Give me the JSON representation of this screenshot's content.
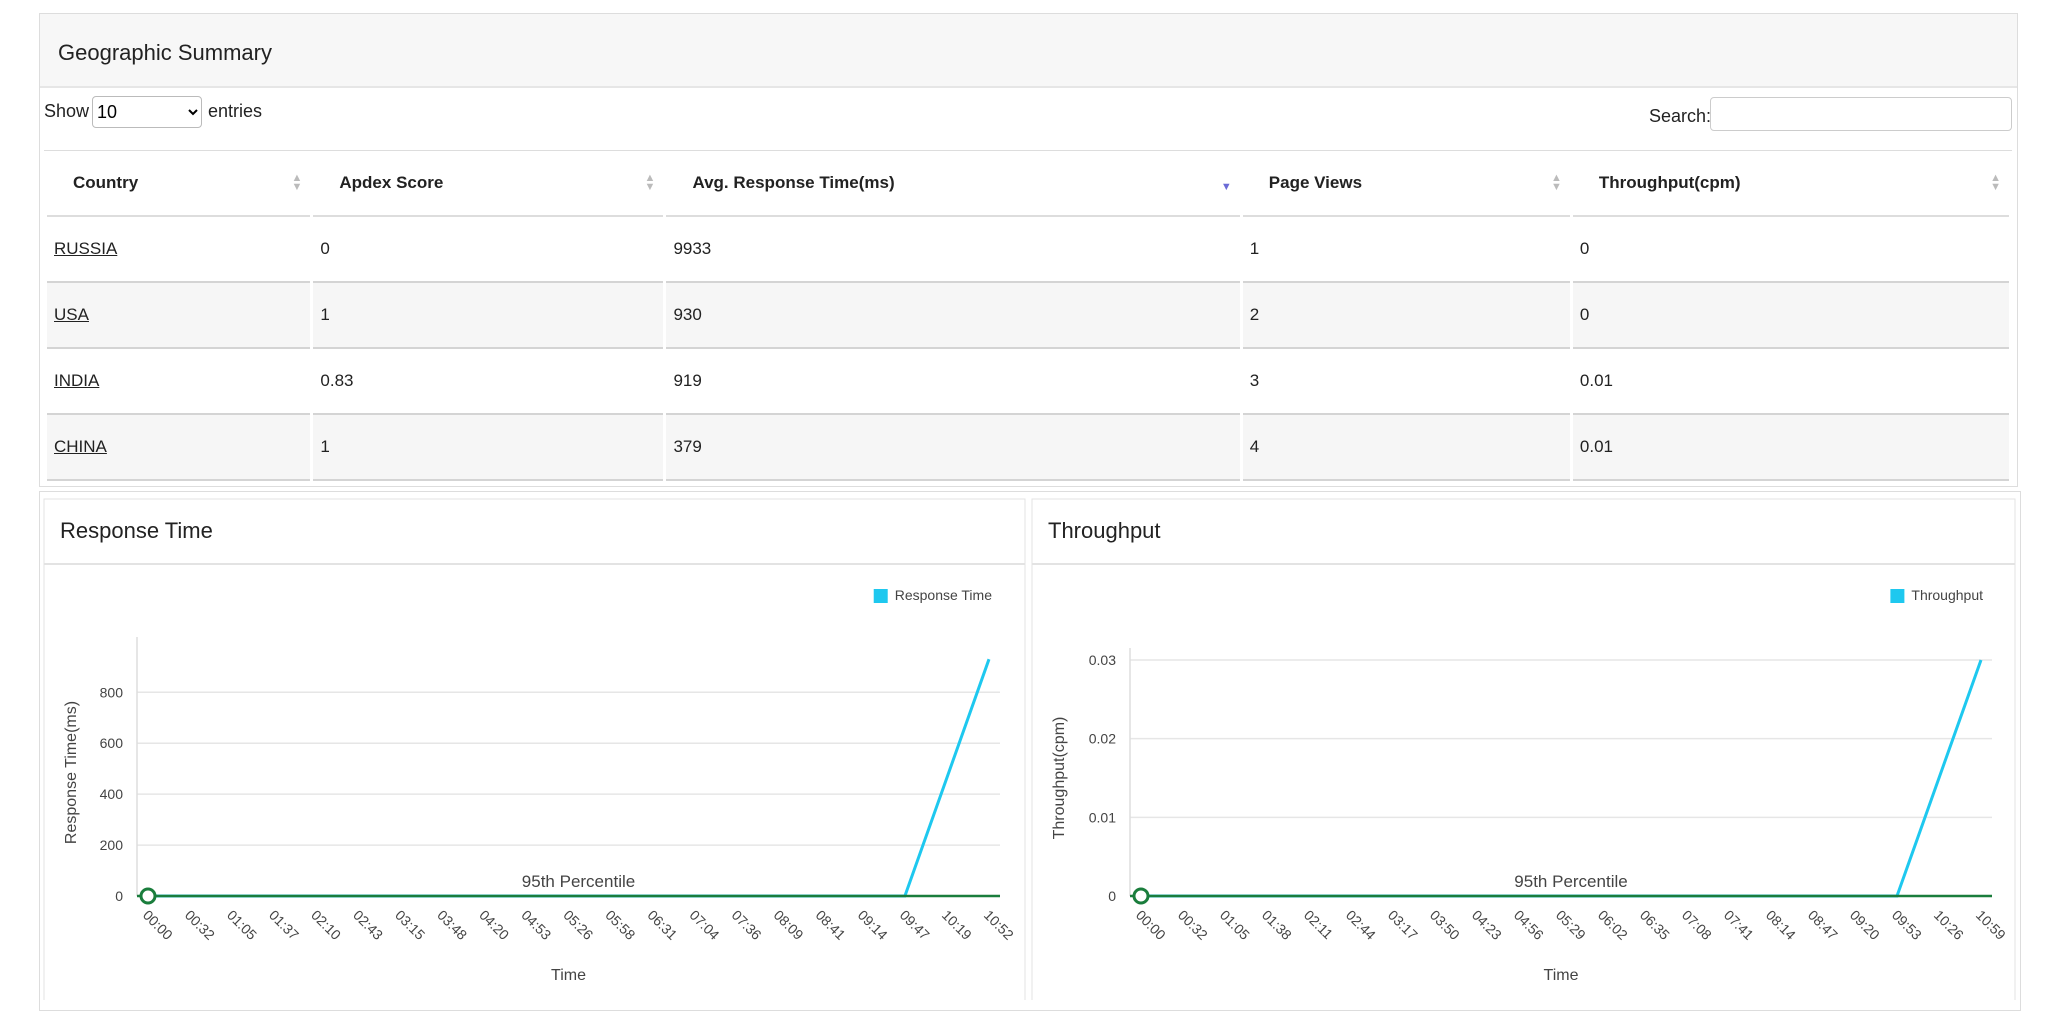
{
  "header": {
    "title": "Geographic Summary"
  },
  "controls": {
    "show_label": "Show",
    "page_size": "10",
    "entries_label": "entries",
    "search_label": "Search:"
  },
  "table": {
    "columns": [
      "Country",
      "Apdex Score",
      "Avg. Response Time(ms)",
      "Page Views",
      "Throughput(cpm)"
    ],
    "rows": [
      [
        "RUSSIA",
        0,
        9933,
        1,
        0
      ],
      [
        "USA",
        1,
        930,
        2,
        0
      ],
      [
        "INDIA",
        0.83,
        919,
        3,
        0.01
      ],
      [
        "CHINA",
        1,
        379,
        4,
        0.01
      ]
    ]
  },
  "chart_data": [
    {
      "type": "line",
      "title": "Response Time",
      "x_label": "Time",
      "y_label": "Response Time(ms)",
      "categories": [
        "00:00",
        "00:32",
        "01:05",
        "01:37",
        "02:10",
        "02:43",
        "03:15",
        "03:48",
        "04:20",
        "04:53",
        "05:26",
        "05:58",
        "06:31",
        "07:04",
        "07:36",
        "08:09",
        "08:41",
        "09:14",
        "09:47",
        "10:19",
        "10:52"
      ],
      "series": [
        {
          "name": "Response Time",
          "color": "#1ec8ef",
          "values": [
            0,
            0,
            0,
            0,
            0,
            0,
            0,
            0,
            0,
            0,
            0,
            0,
            0,
            0,
            0,
            0,
            0,
            0,
            0,
            465,
            930
          ]
        }
      ],
      "ylim": [
        0,
        970
      ],
      "yticks": [
        0,
        200,
        400,
        600,
        800
      ],
      "grid": true,
      "legend": "top-right",
      "annotation": {
        "label": "95th Percentile",
        "value": 0,
        "color": "#1a7d3c"
      }
    },
    {
      "type": "line",
      "title": "Throughput",
      "x_label": "Time",
      "y_label": "Throughput(cpm)",
      "categories": [
        "00:00",
        "00:32",
        "01:05",
        "01:38",
        "02:11",
        "02:44",
        "03:17",
        "03:50",
        "04:23",
        "04:56",
        "05:29",
        "06:02",
        "06:35",
        "07:08",
        "07:41",
        "08:14",
        "08:47",
        "09:20",
        "09:53",
        "10:26",
        "10:59"
      ],
      "series": [
        {
          "name": "Throughput",
          "color": "#1ec8ef",
          "values": [
            0,
            0,
            0,
            0,
            0,
            0,
            0,
            0,
            0,
            0,
            0,
            0,
            0,
            0,
            0,
            0,
            0,
            0,
            0,
            0.015,
            0.03
          ]
        }
      ],
      "ylim": [
        0,
        0.03
      ],
      "yticks": [
        0,
        0.01,
        0.02,
        0.03
      ],
      "grid": true,
      "legend": "top-right",
      "annotation": {
        "label": "95th Percentile",
        "value": 0,
        "color": "#1a7d3c"
      }
    }
  ]
}
